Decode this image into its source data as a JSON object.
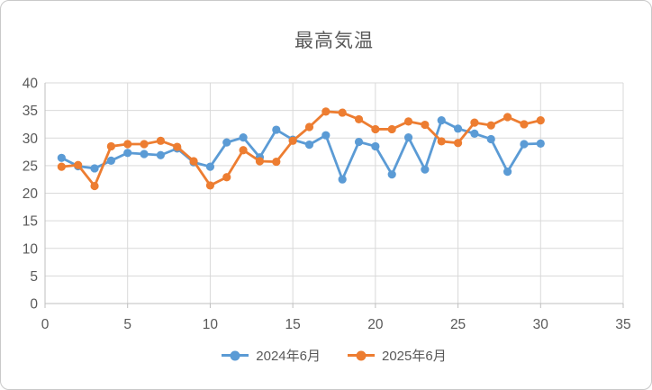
{
  "title": "最高気温",
  "chart_data": {
    "type": "line",
    "title": "最高気温",
    "x": [
      1,
      2,
      3,
      4,
      5,
      6,
      7,
      8,
      9,
      10,
      11,
      12,
      13,
      14,
      15,
      16,
      17,
      18,
      19,
      20,
      21,
      22,
      23,
      24,
      25,
      26,
      27,
      28,
      29,
      30
    ],
    "series": [
      {
        "name": "2024年6月",
        "color": "#5B9BD5",
        "values": [
          26.4,
          24.9,
          24.5,
          25.9,
          27.3,
          27.1,
          26.9,
          28.1,
          25.6,
          24.8,
          29.2,
          30.1,
          26.5,
          31.5,
          29.7,
          28.8,
          30.5,
          22.5,
          29.3,
          28.5,
          23.4,
          30.1,
          24.3,
          33.2,
          31.7,
          30.8,
          29.8,
          23.9,
          28.9,
          29.0
        ]
      },
      {
        "name": "2025年6月",
        "color": "#ED7D31",
        "values": [
          24.8,
          25.1,
          21.3,
          28.5,
          28.9,
          28.9,
          29.5,
          28.4,
          25.8,
          21.4,
          22.9,
          27.8,
          25.8,
          25.7,
          29.5,
          32.0,
          34.8,
          34.6,
          33.4,
          31.6,
          31.6,
          33.0,
          32.4,
          29.4,
          29.1,
          32.8,
          32.3,
          33.8,
          32.5,
          33.2
        ]
      }
    ],
    "xlabel": "",
    "ylabel": "",
    "xlim": [
      0,
      35
    ],
    "ylim": [
      0,
      40
    ],
    "x_ticks": [
      "0",
      "5",
      "10",
      "15",
      "20",
      "25",
      "30",
      "35"
    ],
    "y_ticks": [
      "0",
      "5",
      "10",
      "15",
      "20",
      "25",
      "30",
      "35",
      "40"
    ],
    "grid": true,
    "legend_position": "bottom",
    "axis_label_color": "#595959",
    "title_color": "#595959",
    "gridline_color": "#D9D9D9",
    "axis_line_color": "#BFBFBF",
    "background_color": "#FFFFFF"
  }
}
